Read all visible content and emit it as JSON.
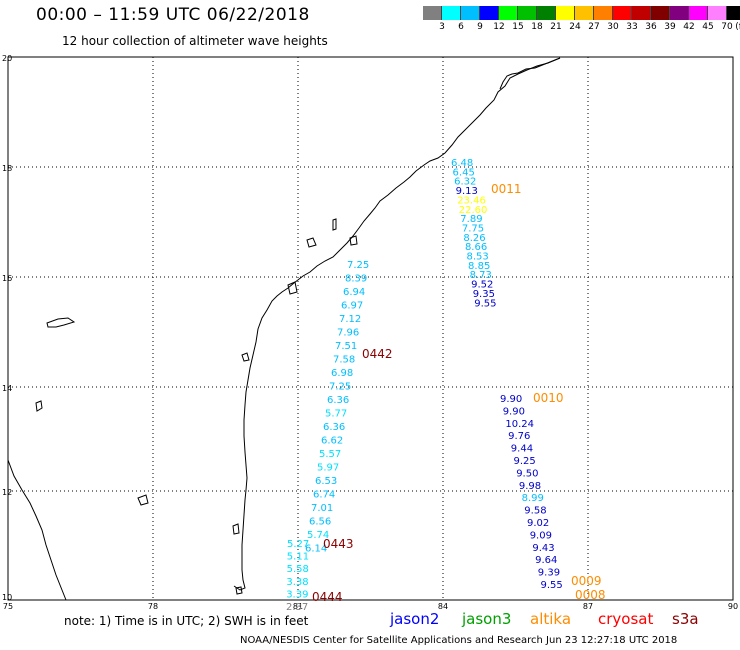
{
  "header": {
    "title": "00:00 – 11:59 UTC 06/22/2018",
    "subtitle": "12 hour collection of altimeter wave heights"
  },
  "colorscale": {
    "colors": [
      "#808080",
      "#00ffff",
      "#00bfff",
      "#0000ff",
      "#00ff00",
      "#00c000",
      "#008000",
      "#ffff00",
      "#ffc000",
      "#ff8000",
      "#ff0000",
      "#c00000",
      "#800000",
      "#800080",
      "#ff00ff",
      "#ff80ff",
      "#000000"
    ],
    "labels": [
      "3",
      "6",
      "9",
      "12",
      "15",
      "18",
      "21",
      "24",
      "27",
      "30",
      "33",
      "36",
      "39",
      "42",
      "45",
      "70",
      "(ft)"
    ]
  },
  "map": {
    "lon_ticks": [
      "75",
      "78",
      "81",
      "84",
      "87",
      "90"
    ],
    "lat_ticks": [
      "20",
      "18",
      "16",
      "14",
      "12",
      "10"
    ]
  },
  "tracks": [
    {
      "id": "0011",
      "color": "#ff8c00",
      "points": [
        {
          "v": "6.48",
          "c": "#00bfff"
        },
        {
          "v": "6.45",
          "c": "#00bfff"
        },
        {
          "v": "6.32",
          "c": "#00bfff"
        },
        {
          "v": "9.13",
          "c": "#0000c8"
        },
        {
          "v": "23.46",
          "c": "#ffff00"
        },
        {
          "v": "22.60",
          "c": "#ffff00"
        },
        {
          "v": "7.89",
          "c": "#00bfff"
        },
        {
          "v": "7.75",
          "c": "#00bfff"
        },
        {
          "v": "8.26",
          "c": "#00bfff"
        },
        {
          "v": "8.66",
          "c": "#00bfff"
        },
        {
          "v": "8.53",
          "c": "#00bfff"
        },
        {
          "v": "8.85",
          "c": "#00bfff"
        },
        {
          "v": "8.73",
          "c": "#00bfff"
        },
        {
          "v": "9.52",
          "c": "#0000c8"
        },
        {
          "v": "9.35",
          "c": "#0000c8"
        },
        {
          "v": "9.55",
          "c": "#0000c8"
        }
      ]
    },
    {
      "id": "0010",
      "color": "#ff8c00",
      "points": [
        {
          "v": "9.90",
          "c": "#0000c8"
        },
        {
          "v": "9.90",
          "c": "#0000c8"
        },
        {
          "v": "10.24",
          "c": "#0000c8"
        },
        {
          "v": "9.76",
          "c": "#0000c8"
        },
        {
          "v": "9.44",
          "c": "#0000c8"
        },
        {
          "v": "9.25",
          "c": "#0000c8"
        },
        {
          "v": "9.50",
          "c": "#0000c8"
        },
        {
          "v": "9.98",
          "c": "#0000c8"
        },
        {
          "v": "8.99",
          "c": "#00bfff"
        },
        {
          "v": "9.58",
          "c": "#0000c8"
        },
        {
          "v": "9.02",
          "c": "#0000c8"
        },
        {
          "v": "9.09",
          "c": "#0000c8"
        },
        {
          "v": "9.43",
          "c": "#0000c8"
        },
        {
          "v": "9.64",
          "c": "#0000c8"
        },
        {
          "v": "9.39",
          "c": "#0000c8"
        },
        {
          "v": "9.55",
          "c": "#0000c8"
        }
      ]
    },
    {
      "id": "0442",
      "color": "#8b0000",
      "points": [
        {
          "v": "7.25",
          "c": "#00bfff"
        },
        {
          "v": "8.39",
          "c": "#00bfff"
        },
        {
          "v": "6.94",
          "c": "#00bfff"
        },
        {
          "v": "6.97",
          "c": "#00bfff"
        },
        {
          "v": "7.12",
          "c": "#00bfff"
        },
        {
          "v": "7.96",
          "c": "#00bfff"
        },
        {
          "v": "7.51",
          "c": "#00bfff"
        },
        {
          "v": "7.58",
          "c": "#00bfff"
        },
        {
          "v": "6.98",
          "c": "#00bfff"
        },
        {
          "v": "7.25",
          "c": "#00bfff"
        },
        {
          "v": "6.36",
          "c": "#00bfff"
        },
        {
          "v": "5.77",
          "c": "#00e0ff"
        },
        {
          "v": "6.36",
          "c": "#00bfff"
        },
        {
          "v": "6.62",
          "c": "#00bfff"
        },
        {
          "v": "5.57",
          "c": "#00e0ff"
        },
        {
          "v": "5.97",
          "c": "#00e0ff"
        },
        {
          "v": "6.53",
          "c": "#00bfff"
        },
        {
          "v": "6.74",
          "c": "#00bfff"
        },
        {
          "v": "7.01",
          "c": "#00bfff"
        },
        {
          "v": "6.56",
          "c": "#00bfff"
        },
        {
          "v": "5.74",
          "c": "#00e0ff"
        },
        {
          "v": "6.14",
          "c": "#00bfff"
        }
      ]
    },
    {
      "id": "0443",
      "color": "#8b0000",
      "points": [
        {
          "v": "5.27",
          "c": "#00e0ff"
        },
        {
          "v": "5.11",
          "c": "#00e0ff"
        },
        {
          "v": "5.58",
          "c": "#00e0ff"
        },
        {
          "v": "3.38",
          "c": "#00e0ff"
        },
        {
          "v": "3.39",
          "c": "#00e0ff"
        },
        {
          "v": "2.37",
          "c": "#808080"
        }
      ]
    },
    {
      "id": "0444",
      "color": "#8b0000",
      "points": []
    },
    {
      "id": "0009",
      "color": "#ff8c00",
      "points": []
    },
    {
      "id": "0008",
      "color": "#ff8c00",
      "points": []
    }
  ],
  "footer": {
    "note": "note: 1) Time is in UTC; 2) SWH is in feet",
    "credit": "NOAA/NESDIS Center for Satellite Applications and Research   Jun 23 12:27:18 UTC 2018",
    "legend": [
      {
        "label": "jason2",
        "color": "#0000ff"
      },
      {
        "label": "jason3",
        "color": "#00a000"
      },
      {
        "label": "altika",
        "color": "#ff8c00"
      },
      {
        "label": "cryosat",
        "color": "#ff0000"
      },
      {
        "label": "s3a",
        "color": "#8b0000"
      }
    ]
  }
}
